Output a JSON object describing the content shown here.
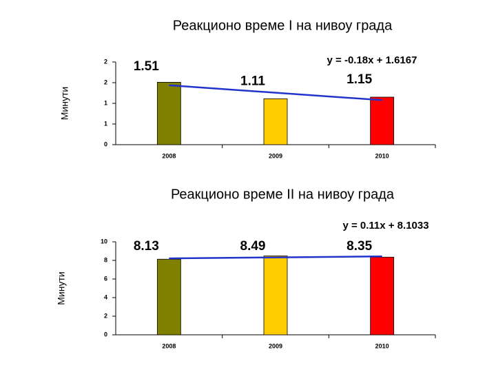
{
  "chart_data": [
    {
      "type": "bar",
      "title": "Реакционо време I на нивоу града",
      "y_label": "Минути",
      "categories": [
        "2008",
        "2009",
        "2010"
      ],
      "values": [
        1.51,
        1.11,
        1.15
      ],
      "colors": [
        "#808000",
        "#ffcc00",
        "#ff0000"
      ],
      "ylim": [
        0,
        2
      ],
      "yticks": [
        0,
        {
          "value": 0.5,
          "label": "1"
        },
        1,
        {
          "value": 1.5,
          "label": "2"
        },
        2
      ],
      "trendline": {
        "label": "y = -0.18x + 1.6167",
        "slope": -0.18,
        "intercept": 1.6167,
        "color": "#2233cc"
      }
    },
    {
      "type": "bar",
      "title": "Реакционо време II на нивоу града",
      "y_label": "Минути",
      "categories": [
        "2008",
        "2009",
        "2010"
      ],
      "values": [
        8.13,
        8.49,
        8.35
      ],
      "colors": [
        "#808000",
        "#ffcc00",
        "#ff0000"
      ],
      "ylim": [
        0,
        10
      ],
      "yticks": [
        0,
        2,
        4,
        6,
        8,
        10
      ],
      "trendline": {
        "label": "y = 0.11x + 8.1033",
        "slope": 0.11,
        "intercept": 8.1033,
        "color": "#2233cc"
      }
    }
  ]
}
